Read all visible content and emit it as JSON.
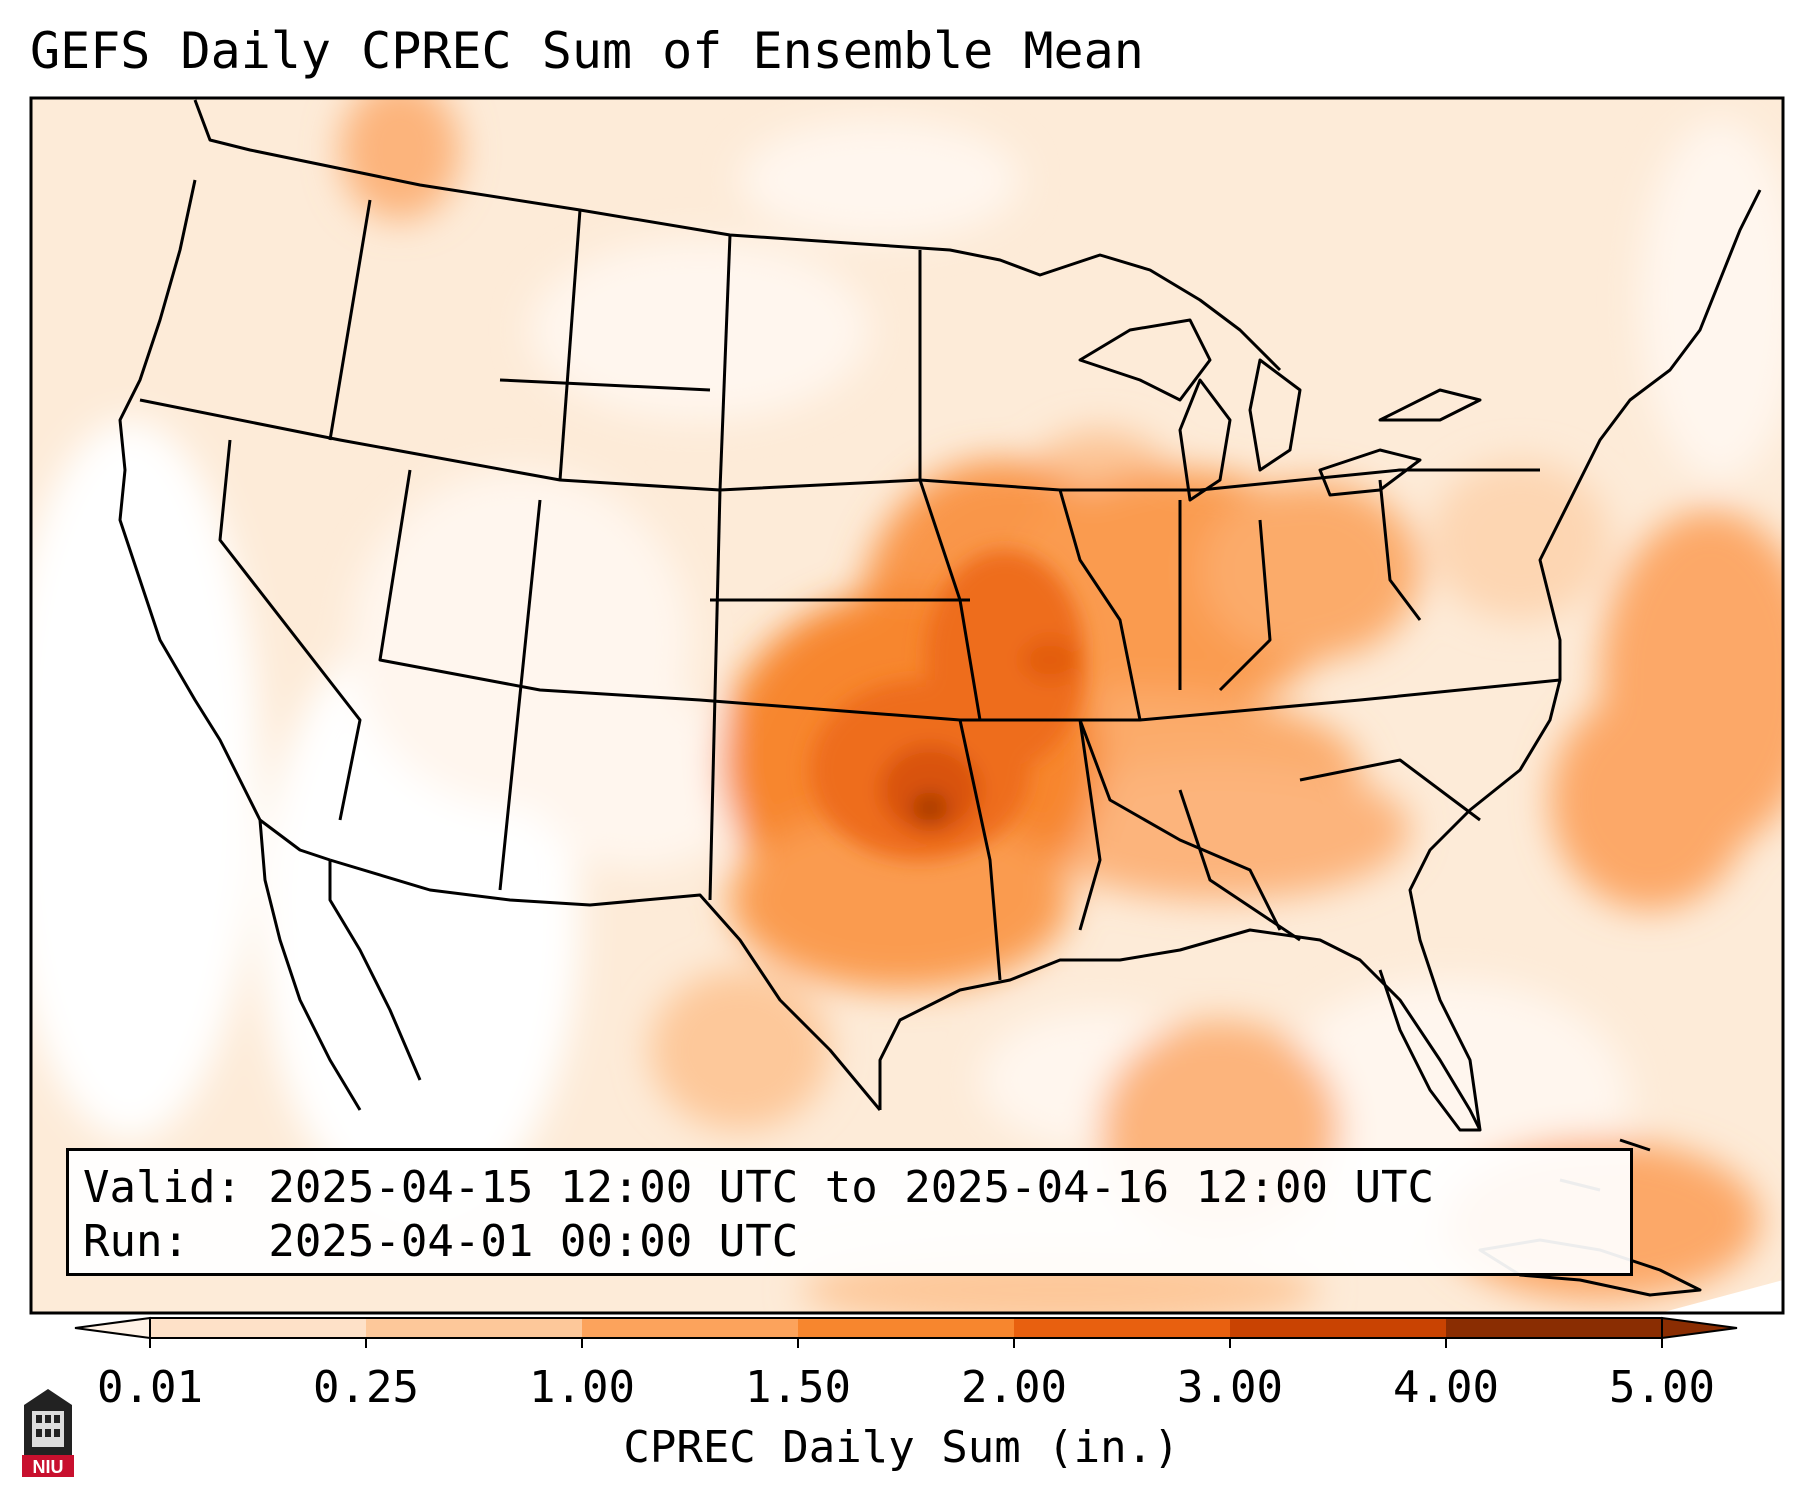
{
  "title": "GEFS Daily CPREC Sum of Ensemble Mean",
  "info": {
    "valid_line": "Valid: 2025-04-15 12:00 UTC to 2025-04-16 12:00 UTC",
    "run_line": "Run:   2025-04-01 00:00 UTC"
  },
  "colorbar": {
    "label": "CPREC Daily Sum (in.)",
    "ticks": [
      "0.01",
      "0.25",
      "1.00",
      "1.50",
      "2.00",
      "3.00",
      "4.00",
      "5.00"
    ],
    "colors": [
      "#fff2e6",
      "#fee1c8",
      "#fdc89a",
      "#fca35c",
      "#f7862e",
      "#e8600f",
      "#c94302",
      "#8a2d02"
    ],
    "extend": "both"
  },
  "logo": {
    "text": "NIU",
    "color": "#c8102e"
  }
}
